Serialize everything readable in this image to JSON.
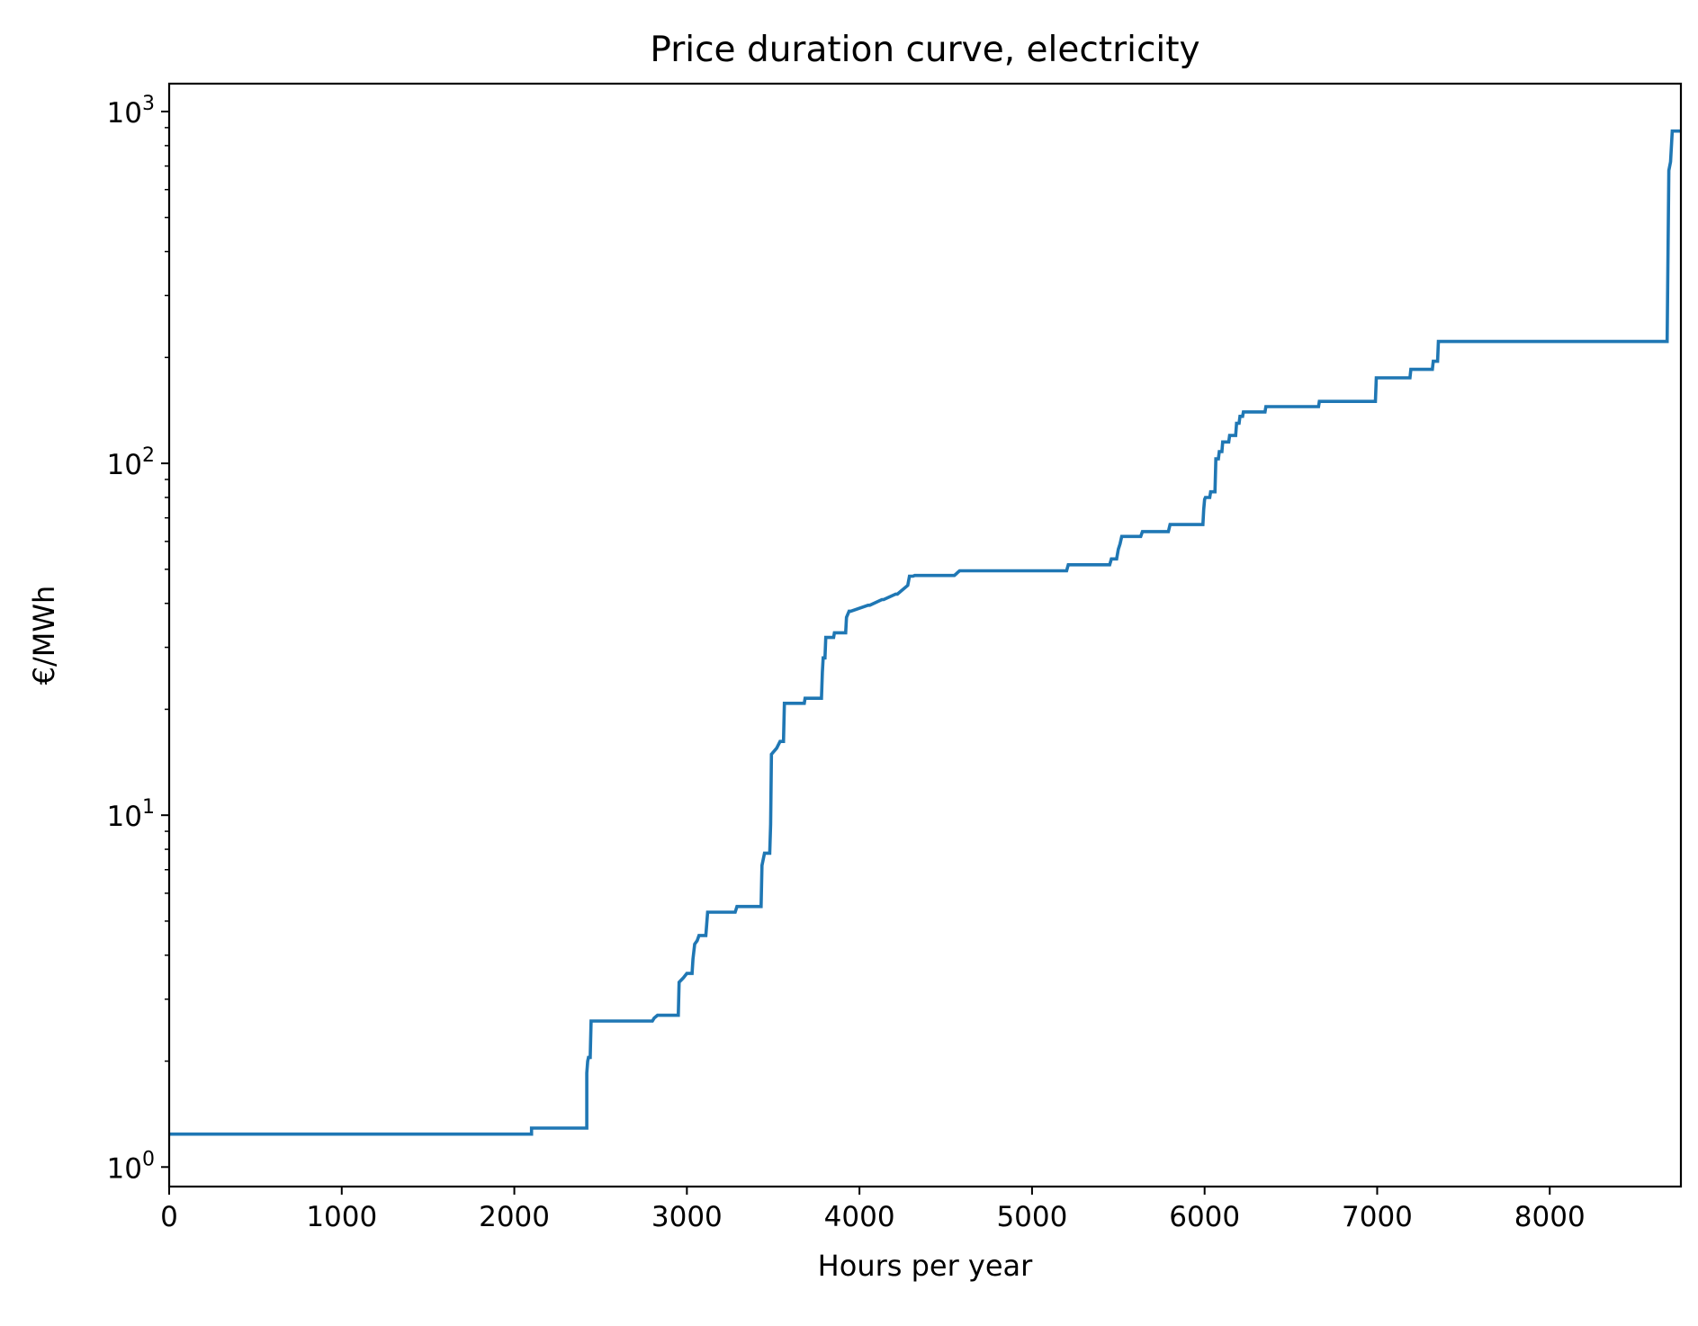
{
  "chart_data": {
    "type": "line",
    "title": "Price duration curve, electricity",
    "xlabel": "Hours per year",
    "ylabel": "€/MWh",
    "xlim": [
      0,
      8760
    ],
    "ylim": [
      0.88,
      1200
    ],
    "yscale": "log",
    "grid": false,
    "line_color": "#1f77b4",
    "xticks": [
      {
        "value": 0,
        "label": "0"
      },
      {
        "value": 1000,
        "label": "1000"
      },
      {
        "value": 2000,
        "label": "2000"
      },
      {
        "value": 3000,
        "label": "3000"
      },
      {
        "value": 4000,
        "label": "4000"
      },
      {
        "value": 5000,
        "label": "5000"
      },
      {
        "value": 6000,
        "label": "6000"
      },
      {
        "value": 7000,
        "label": "7000"
      },
      {
        "value": 8000,
        "label": "8000"
      }
    ],
    "yticks": [
      {
        "value": 1,
        "base": "10",
        "exp": "0"
      },
      {
        "value": 10,
        "base": "10",
        "exp": "1"
      },
      {
        "value": 100,
        "base": "10",
        "exp": "2"
      },
      {
        "value": 1000,
        "base": "10",
        "exp": "3"
      }
    ],
    "series": [
      {
        "x": [
          0,
          2100,
          2100,
          2420,
          2420,
          2425,
          2430,
          2440,
          2445,
          2800,
          2810,
          2830,
          2950,
          2955,
          2980,
          3000,
          3030,
          3035,
          3045,
          3060,
          3070,
          3110,
          3120,
          3280,
          3290,
          3430,
          3435,
          3450,
          3480,
          3485,
          3490,
          3495,
          3520,
          3540,
          3560,
          3565,
          3680,
          3685,
          3780,
          3785,
          3790,
          3800,
          3805,
          3850,
          3855,
          3920,
          3925,
          3940,
          3950,
          4050,
          4060,
          4130,
          4140,
          4210,
          4220,
          4280,
          4290,
          4310,
          4320,
          4550,
          4560,
          4570,
          4580,
          5200,
          5210,
          5450,
          5460,
          5490,
          5500,
          5510,
          5520,
          5630,
          5640,
          5790,
          5800,
          5990,
          5995,
          6000,
          6005,
          6030,
          6035,
          6060,
          6065,
          6080,
          6085,
          6100,
          6105,
          6140,
          6145,
          6180,
          6185,
          6200,
          6205,
          6220,
          6225,
          6350,
          6355,
          6660,
          6665,
          6990,
          6995,
          7190,
          7195,
          7320,
          7325,
          7350,
          7355,
          8680,
          8690,
          8700,
          8710,
          8760
        ],
        "y": [
          1.24,
          1.24,
          1.29,
          1.29,
          1.85,
          2.0,
          2.05,
          2.05,
          2.6,
          2.6,
          2.65,
          2.7,
          2.7,
          3.35,
          3.45,
          3.55,
          3.55,
          3.9,
          4.3,
          4.4,
          4.55,
          4.55,
          5.3,
          5.3,
          5.5,
          5.5,
          7.2,
          7.8,
          7.8,
          9.4,
          14.9,
          15.0,
          15.5,
          16.2,
          16.2,
          20.8,
          20.8,
          21.5,
          21.5,
          25.5,
          28.0,
          28.0,
          32.0,
          32.0,
          33.0,
          33.0,
          36.5,
          38.0,
          38.0,
          39.5,
          39.5,
          41.0,
          41.0,
          42.5,
          42.5,
          45.0,
          47.8,
          47.8,
          48.0,
          48.0,
          48.5,
          49.0,
          49.5,
          49.5,
          51.5,
          51.5,
          53.5,
          53.5,
          57.0,
          59.0,
          62.0,
          62.0,
          64.0,
          64.0,
          67.0,
          67.0,
          74.0,
          79.0,
          80.0,
          80.0,
          83.0,
          83.0,
          103.0,
          103.0,
          108.0,
          108.0,
          115.0,
          115.0,
          120.0,
          120.0,
          130.0,
          130.0,
          136.0,
          136.0,
          140.0,
          140.0,
          145.0,
          145.0,
          150.0,
          150.0,
          175.0,
          175.0,
          185.0,
          185.0,
          195.0,
          195.0,
          222.0,
          222.0,
          680.0,
          720.0,
          880.0,
          880.0
        ]
      }
    ]
  }
}
